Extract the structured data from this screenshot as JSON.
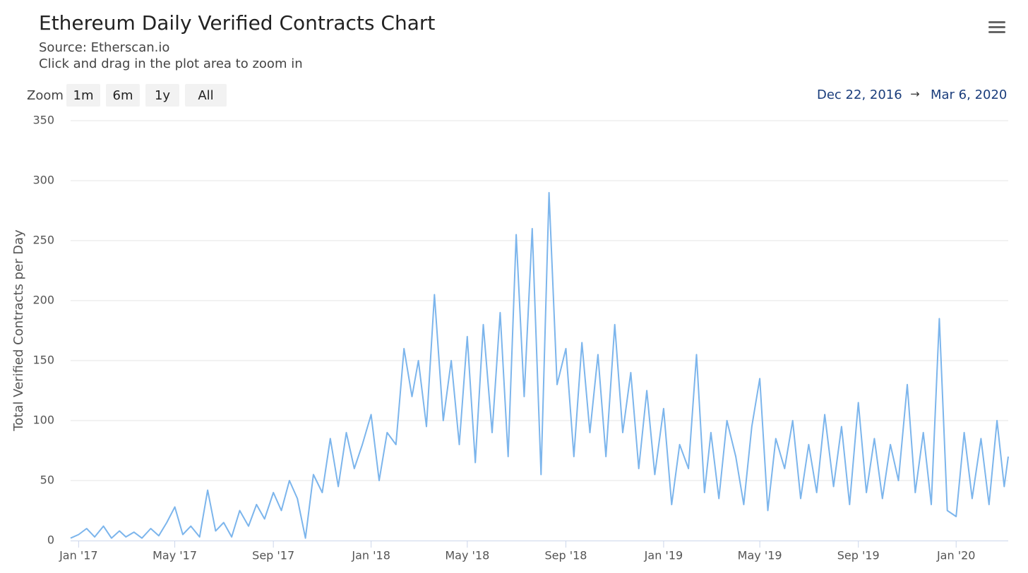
{
  "chart_data": {
    "type": "line",
    "title": "Ethereum Daily Verified Contracts Chart",
    "subtitle": [
      "Source: Etherscan.io",
      "Click and drag in the plot area to zoom in"
    ],
    "zoom": {
      "label": "Zoom",
      "buttons": [
        "1m",
        "6m",
        "1y",
        "All"
      ]
    },
    "range": {
      "from": "Dec 22, 2016",
      "arrow": "→",
      "to": "Mar 6, 2020"
    },
    "y_label": "Total Verified Contracts per Day",
    "xlim": [
      "2016-12-22",
      "2020-03-06"
    ],
    "xticks": [
      {
        "value": "2017-01-01",
        "label": "Jan '17"
      },
      {
        "value": "2017-05-01",
        "label": "May '17"
      },
      {
        "value": "2017-09-01",
        "label": "Sep '17"
      },
      {
        "value": "2018-01-01",
        "label": "Jan '18"
      },
      {
        "value": "2018-05-01",
        "label": "May '18"
      },
      {
        "value": "2018-09-01",
        "label": "Sep '18"
      },
      {
        "value": "2019-01-01",
        "label": "Jan '19"
      },
      {
        "value": "2019-05-01",
        "label": "May '19"
      },
      {
        "value": "2019-09-01",
        "label": "Sep '19"
      },
      {
        "value": "2020-01-01",
        "label": "Jan '20"
      }
    ],
    "ylim": [
      0,
      350
    ],
    "yticks": [
      0,
      50,
      100,
      150,
      200,
      250,
      300,
      350
    ],
    "grid": true,
    "x": [
      "2016-12-22",
      "2017-01-01",
      "2017-01-11",
      "2017-01-21",
      "2017-02-01",
      "2017-02-11",
      "2017-02-21",
      "2017-03-01",
      "2017-03-11",
      "2017-03-21",
      "2017-04-01",
      "2017-04-11",
      "2017-04-21",
      "2017-05-01",
      "2017-05-11",
      "2017-05-21",
      "2017-06-01",
      "2017-06-11",
      "2017-06-21",
      "2017-07-01",
      "2017-07-11",
      "2017-07-21",
      "2017-08-01",
      "2017-08-11",
      "2017-08-21",
      "2017-09-01",
      "2017-09-11",
      "2017-09-21",
      "2017-10-01",
      "2017-10-11",
      "2017-10-21",
      "2017-11-01",
      "2017-11-11",
      "2017-11-21",
      "2017-12-01",
      "2017-12-11",
      "2017-12-21",
      "2018-01-01",
      "2018-01-11",
      "2018-01-21",
      "2018-02-01",
      "2018-02-11",
      "2018-02-21",
      "2018-03-01",
      "2018-03-11",
      "2018-03-21",
      "2018-04-01",
      "2018-04-11",
      "2018-04-21",
      "2018-05-01",
      "2018-05-11",
      "2018-05-21",
      "2018-06-01",
      "2018-06-11",
      "2018-06-21",
      "2018-07-01",
      "2018-07-11",
      "2018-07-21",
      "2018-08-01",
      "2018-08-11",
      "2018-08-21",
      "2018-09-01",
      "2018-09-11",
      "2018-09-21",
      "2018-10-01",
      "2018-10-11",
      "2018-10-21",
      "2018-11-01",
      "2018-11-11",
      "2018-11-21",
      "2018-12-01",
      "2018-12-11",
      "2018-12-21",
      "2019-01-01",
      "2019-01-11",
      "2019-01-21",
      "2019-02-01",
      "2019-02-11",
      "2019-02-21",
      "2019-03-01",
      "2019-03-11",
      "2019-03-21",
      "2019-04-01",
      "2019-04-11",
      "2019-04-21",
      "2019-05-01",
      "2019-05-11",
      "2019-05-21",
      "2019-06-01",
      "2019-06-11",
      "2019-06-21",
      "2019-07-01",
      "2019-07-11",
      "2019-07-21",
      "2019-08-01",
      "2019-08-11",
      "2019-08-21",
      "2019-09-01",
      "2019-09-11",
      "2019-09-21",
      "2019-10-01",
      "2019-10-11",
      "2019-10-21",
      "2019-11-01",
      "2019-11-11",
      "2019-11-21",
      "2019-12-01",
      "2019-12-11",
      "2019-12-21",
      "2020-01-01",
      "2020-01-11",
      "2020-01-21",
      "2020-02-01",
      "2020-02-11",
      "2020-02-21",
      "2020-03-01",
      "2020-03-06"
    ],
    "series": [
      {
        "name": "Verified Contracts",
        "color": "#7cb5ec",
        "values": [
          2,
          5,
          10,
          3,
          12,
          2,
          8,
          3,
          7,
          2,
          10,
          4,
          15,
          28,
          5,
          12,
          3,
          42,
          8,
          15,
          3,
          25,
          12,
          30,
          18,
          40,
          25,
          50,
          35,
          2,
          55,
          40,
          85,
          45,
          90,
          60,
          80,
          105,
          50,
          90,
          80,
          160,
          120,
          150,
          95,
          205,
          100,
          150,
          80,
          170,
          65,
          180,
          90,
          190,
          70,
          255,
          120,
          260,
          55,
          290,
          130,
          160,
          70,
          165,
          90,
          155,
          70,
          180,
          90,
          140,
          60,
          125,
          55,
          110,
          30,
          80,
          60,
          155,
          40,
          90,
          35,
          100,
          70,
          30,
          95,
          135,
          25,
          85,
          60,
          100,
          35,
          80,
          40,
          105,
          45,
          95,
          30,
          115,
          40,
          85,
          35,
          80,
          50,
          130,
          40,
          90,
          30,
          185,
          25,
          20,
          90,
          35,
          85,
          30,
          100,
          45,
          70
        ]
      }
    ]
  }
}
